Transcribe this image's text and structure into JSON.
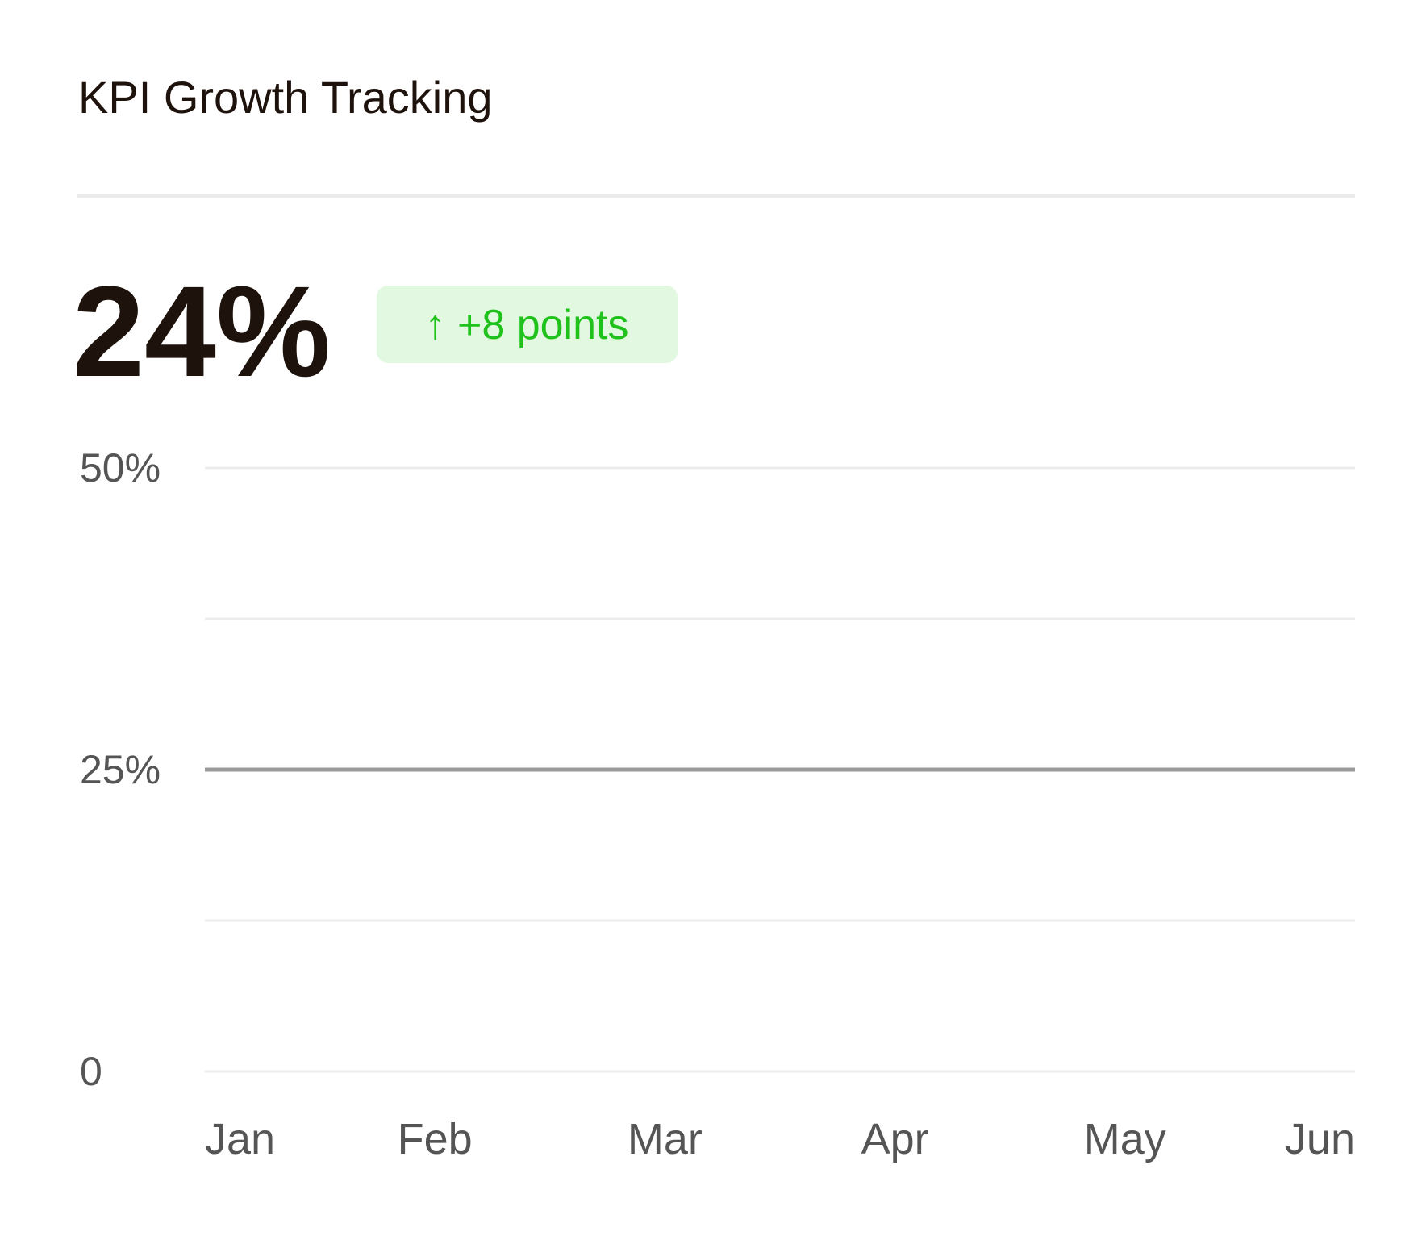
{
  "chart_data": {
    "type": "line",
    "title": "KPI Growth Tracking",
    "headline_value": "24%",
    "change_badge": "↑ +8 points",
    "categories": [
      "Jan",
      "Feb",
      "Mar",
      "Apr",
      "May",
      "Jun"
    ],
    "series": [
      {
        "color": "#9a9a9a",
        "values": [
          25,
          25,
          25,
          25,
          25,
          25
        ]
      }
    ],
    "ylim": [
      0,
      50
    ],
    "yticks": [
      0,
      {
        "value": 25,
        "label": "25%"
      },
      {
        "value": 50,
        "label": "50%"
      }
    ],
    "minor_yticks": [
      12.5,
      37.5
    ],
    "grid": true
  }
}
